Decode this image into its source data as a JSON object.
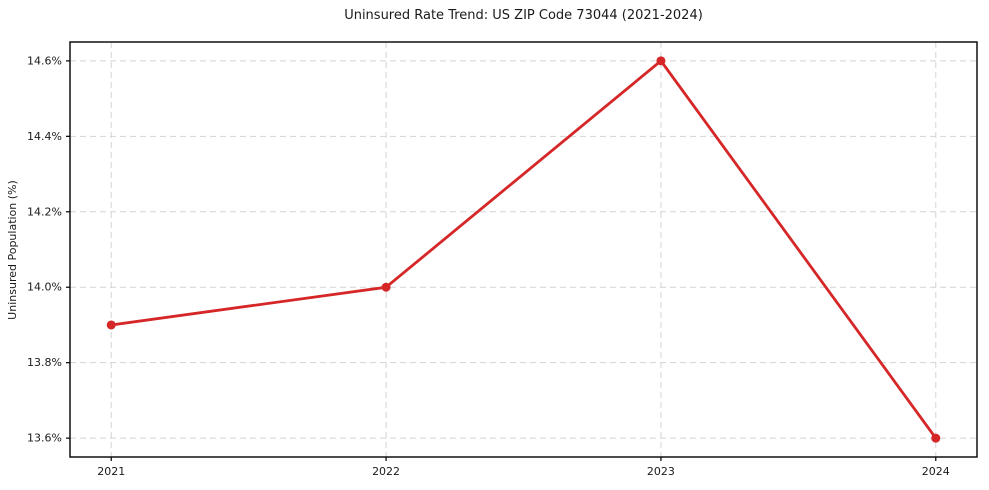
{
  "chart_data": {
    "type": "line",
    "title": "Uninsured Rate Trend: US ZIP Code 73044 (2021-2024)",
    "xlabel": "",
    "ylabel": "Uninsured Population (%)",
    "x": [
      2021,
      2022,
      2023,
      2024
    ],
    "values": [
      13.9,
      14.0,
      14.6,
      13.6
    ],
    "series_name": "Uninsured rate",
    "xticks": {
      "values": [
        2021,
        2022,
        2023,
        2024
      ],
      "labels": [
        "2021",
        "2022",
        "2023",
        "2024"
      ]
    },
    "yticks": {
      "values": [
        13.6,
        13.8,
        14.0,
        14.2,
        14.4,
        14.6
      ],
      "labels": [
        "13.6%",
        "13.8%",
        "14.0%",
        "14.2%",
        "14.4%",
        "14.6%"
      ]
    },
    "xlim": [
      2020.85,
      2024.15
    ],
    "ylim": [
      13.55,
      14.65
    ],
    "grid": true,
    "legend": null,
    "style": {
      "line_color": "#d62728",
      "marker": "circle",
      "marker_radius": 4.5,
      "grid_color": "#d4d4d4",
      "axis_color": "#000000",
      "text_color": "#1a1a1a",
      "background": "#ffffff"
    }
  }
}
